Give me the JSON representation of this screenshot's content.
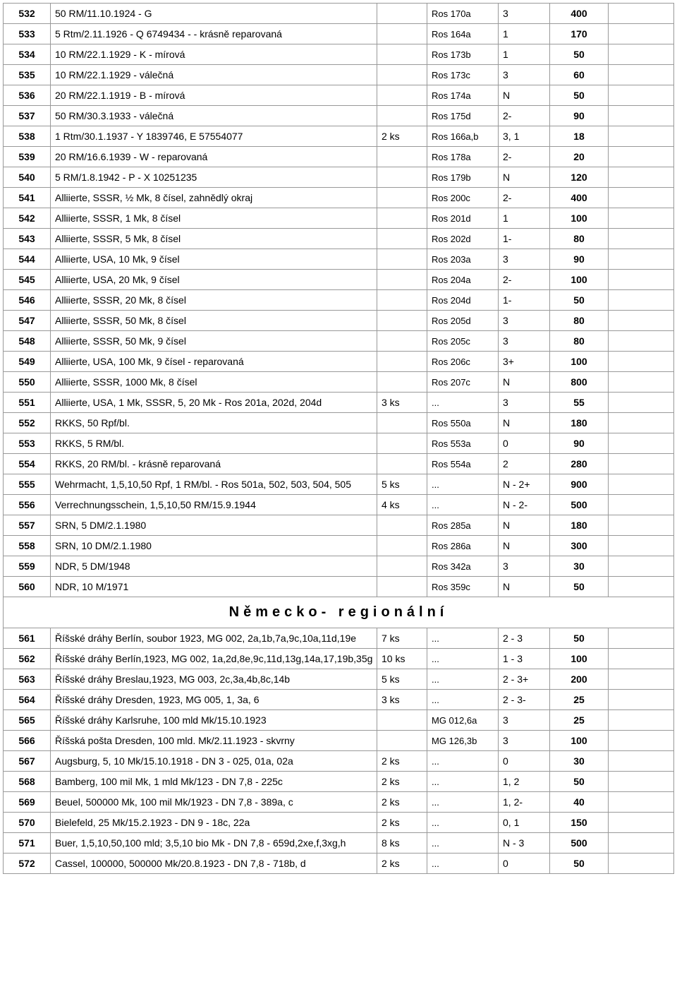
{
  "rows": [
    {
      "n": "532",
      "desc": "50 RM/11.10.1924 - G",
      "qty": "",
      "ref": "Ros 170a",
      "grade": "3",
      "price": "400"
    },
    {
      "n": "533",
      "desc": "5 Rtm/2.11.1926 - Q 6749434 - - krásně reparovaná",
      "qty": "",
      "ref": "Ros 164a",
      "grade": "1",
      "price": "170"
    },
    {
      "n": "534",
      "desc": "10 RM/22.1.1929 - K - mírová",
      "qty": "",
      "ref": "Ros 173b",
      "grade": "1",
      "price": "50"
    },
    {
      "n": "535",
      "desc": "10 RM/22.1.1929 - válečná",
      "qty": "",
      "ref": "Ros 173c",
      "grade": "3",
      "price": "60"
    },
    {
      "n": "536",
      "desc": "20 RM/22.1.1919 - B - mírová",
      "qty": "",
      "ref": "Ros 174a",
      "grade": "N",
      "price": "50"
    },
    {
      "n": "537",
      "desc": "50 RM/30.3.1933 - válečná",
      "qty": "",
      "ref": "Ros 175d",
      "grade": "2-",
      "price": "90"
    },
    {
      "n": "538",
      "desc": "1 Rtm/30.1.1937 - Y 1839746, E 57554077",
      "qty": "2 ks",
      "ref": "Ros 166a,b",
      "grade": "3, 1",
      "price": "18"
    },
    {
      "n": "539",
      "desc": "20 RM/16.6.1939 - W - reparovaná",
      "qty": "",
      "ref": "Ros 178a",
      "grade": "2-",
      "price": "20"
    },
    {
      "n": "540",
      "desc": "5 RM/1.8.1942 - P - X 10251235",
      "qty": "",
      "ref": "Ros 179b",
      "grade": "N",
      "price": "120"
    },
    {
      "n": "541",
      "desc": "Alliierte, SSSR, ½ Mk, 8 čísel, zahnědlý okraj",
      "qty": "",
      "ref": "Ros 200c",
      "grade": "2-",
      "price": "400"
    },
    {
      "n": "542",
      "desc": "Alliierte, SSSR, 1 Mk, 8 čísel",
      "qty": "",
      "ref": "Ros 201d",
      "grade": "1",
      "price": "100"
    },
    {
      "n": "543",
      "desc": "Alliierte, SSSR, 5 Mk, 8 čísel",
      "qty": "",
      "ref": "Ros 202d",
      "grade": "1-",
      "price": "80"
    },
    {
      "n": "544",
      "desc": "Alliierte, USA, 10 Mk, 9 čísel",
      "qty": "",
      "ref": "Ros 203a",
      "grade": "3",
      "price": "90"
    },
    {
      "n": "545",
      "desc": "Alliierte, USA, 20 Mk, 9 čísel",
      "qty": "",
      "ref": "Ros 204a",
      "grade": "2-",
      "price": "100"
    },
    {
      "n": "546",
      "desc": "Alliierte, SSSR, 20 Mk, 8 čísel",
      "qty": "",
      "ref": "Ros 204d",
      "grade": "1-",
      "price": "50"
    },
    {
      "n": "547",
      "desc": "Alliierte, SSSR, 50 Mk, 8 čísel",
      "qty": "",
      "ref": "Ros 205d",
      "grade": "3",
      "price": "80"
    },
    {
      "n": "548",
      "desc": "Alliierte, SSSR, 50 Mk, 9 čísel",
      "qty": "",
      "ref": "Ros 205c",
      "grade": "3",
      "price": "80"
    },
    {
      "n": "549",
      "desc": "Alliierte, USA, 100 Mk, 9 čísel - reparovaná",
      "qty": "",
      "ref": "Ros 206c",
      "grade": "3+",
      "price": "100"
    },
    {
      "n": "550",
      "desc": "Alliierte, SSSR, 1000 Mk, 8 čísel",
      "qty": "",
      "ref": "Ros 207c",
      "grade": "N",
      "price": "800"
    },
    {
      "n": "551",
      "desc": "Alliierte, USA, 1 Mk, SSSR, 5, 20 Mk - Ros 201a, 202d, 204d",
      "qty": "3 ks",
      "ref": "...",
      "grade": "3",
      "price": "55"
    },
    {
      "n": "552",
      "desc": "RKKS, 50 Rpf/bl.",
      "qty": "",
      "ref": "Ros 550a",
      "grade": "N",
      "price": "180"
    },
    {
      "n": "553",
      "desc": "RKKS, 5 RM/bl.",
      "qty": "",
      "ref": "Ros 553a",
      "grade": "0",
      "price": "90"
    },
    {
      "n": "554",
      "desc": "RKKS, 20 RM/bl. - krásně reparovaná",
      "qty": "",
      "ref": "Ros 554a",
      "grade": "2",
      "price": "280"
    },
    {
      "n": "555",
      "desc": "Wehrmacht, 1,5,10,50 Rpf, 1 RM/bl. - Ros 501a, 502, 503, 504, 505",
      "qty": "5 ks",
      "ref": "...",
      "grade": "N - 2+",
      "price": "900"
    },
    {
      "n": "556",
      "desc": "Verrechnungsschein, 1,5,10,50 RM/15.9.1944",
      "qty": "4 ks",
      "ref": "...",
      "grade": "N - 2-",
      "price": "500"
    },
    {
      "n": "557",
      "desc": "SRN, 5 DM/2.1.1980",
      "qty": "",
      "ref": "Ros 285a",
      "grade": "N",
      "price": "180"
    },
    {
      "n": "558",
      "desc": "SRN, 10 DM/2.1.1980",
      "qty": "",
      "ref": "Ros 286a",
      "grade": "N",
      "price": "300"
    },
    {
      "n": "559",
      "desc": "NDR, 5 DM/1948",
      "qty": "",
      "ref": "Ros 342a",
      "grade": "3",
      "price": "30"
    },
    {
      "n": "560",
      "desc": "NDR, 10 M/1971",
      "qty": "",
      "ref": "Ros 359c",
      "grade": "N",
      "price": "50"
    },
    {
      "section": "Německo- regionální"
    },
    {
      "n": "561",
      "desc": "Říšské dráhy Berlín, soubor 1923, MG 002, 2a,1b,7a,9c,10a,11d,19e",
      "qty": "7 ks",
      "ref": "...",
      "grade": "2 - 3",
      "price": "50"
    },
    {
      "n": "562",
      "desc": "Říšské dráhy Berlín,1923, MG 002, 1a,2d,8e,9c,11d,13g,14a,17,19b,35g",
      "qty": "10 ks",
      "ref": "...",
      "grade": "1 - 3",
      "price": "100"
    },
    {
      "n": "563",
      "desc": "Říšské dráhy Breslau,1923, MG 003, 2c,3a,4b,8c,14b",
      "qty": "5 ks",
      "ref": "...",
      "grade": "2 - 3+",
      "price": "200"
    },
    {
      "n": "564",
      "desc": "Říšské dráhy Dresden, 1923, MG 005, 1, 3a, 6",
      "qty": "3 ks",
      "ref": "...",
      "grade": "2 - 3-",
      "price": "25"
    },
    {
      "n": "565",
      "desc": "Říšské dráhy Karlsruhe, 100 mld Mk/15.10.1923",
      "qty": "",
      "ref": "MG 012,6a",
      "grade": "3",
      "price": "25"
    },
    {
      "n": "566",
      "desc": "Říšská pošta Dresden, 100 mld. Mk/2.11.1923 -  skvrny",
      "qty": "",
      "ref": "MG 126,3b",
      "grade": "3",
      "price": "100"
    },
    {
      "n": "567",
      "desc": "Augsburg, 5, 10 Mk/15.10.1918 - DN 3 - 025, 01a, 02a",
      "qty": "2 ks",
      "ref": "...",
      "grade": "0",
      "price": "30"
    },
    {
      "n": "568",
      "desc": "Bamberg, 100 mil Mk, 1 mld Mk/123 - DN 7,8 - 225c",
      "qty": "2 ks",
      "ref": "...",
      "grade": "1, 2",
      "price": "50"
    },
    {
      "n": "569",
      "desc": "Beuel, 500000 Mk, 100 mil Mk/1923 - DN 7,8 - 389a, c",
      "qty": "2 ks",
      "ref": "...",
      "grade": "1, 2-",
      "price": "40"
    },
    {
      "n": "570",
      "desc": "Bielefeld, 25 Mk/15.2.1923 - DN 9 - 18c, 22a",
      "qty": "2 ks",
      "ref": "...",
      "grade": "0, 1",
      "price": "150"
    },
    {
      "n": "571",
      "desc": "Buer, 1,5,10,50,100 mld; 3,5,10 bio Mk - DN 7,8 - 659d,2xe,f,3xg,h",
      "qty": "8 ks",
      "ref": "...",
      "grade": "N - 3",
      "price": "500"
    },
    {
      "n": "572",
      "desc": "Cassel, 100000, 500000 Mk/20.8.1923 - DN 7,8 - 718b, d",
      "qty": "2 ks",
      "ref": "...",
      "grade": "0",
      "price": "50"
    }
  ],
  "columns": [
    "n",
    "desc",
    "qty",
    "ref",
    "grade",
    "price",
    "empty"
  ],
  "col_classes": [
    "col-num",
    "col-desc",
    "col-qty",
    "col-ref",
    "col-grade",
    "col-price",
    "col-empty"
  ]
}
